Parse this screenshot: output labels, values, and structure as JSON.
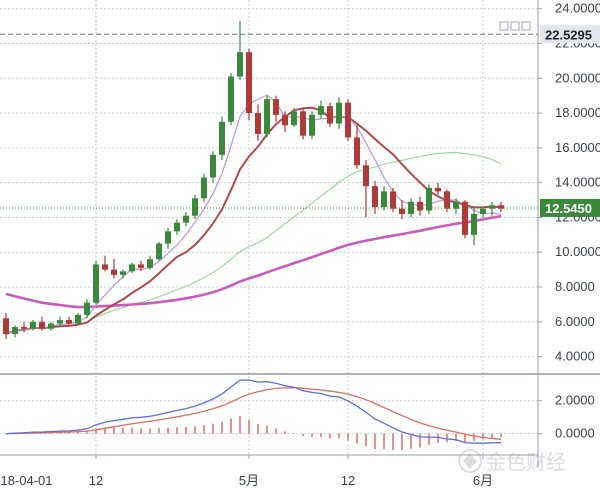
{
  "chart_data": [
    {
      "type": "candlestick",
      "panel": "price",
      "grid": true,
      "ylim": [
        3.0,
        24.5
      ],
      "y_ticks": [
        "4.0000",
        "6.0000",
        "8.0000",
        "10.0000",
        "12.0000",
        "14.0000",
        "16.0000",
        "18.0000",
        "20.0000",
        "22.0000",
        "24.0000"
      ],
      "y_tick_values": [
        4,
        6,
        8,
        10,
        12,
        14,
        16,
        18,
        20,
        22,
        24
      ],
      "x_ticks": [
        "2018-04-01",
        "12",
        "5月",
        "12",
        "6月"
      ],
      "x_tick_index": [
        0,
        10,
        27,
        38,
        53
      ],
      "price_labels": [
        {
          "text": "22.5295",
          "value": 22.5295,
          "style": "dark",
          "line": "dashed"
        },
        {
          "text": "12.5450",
          "value": 12.545,
          "style": "green",
          "line": "dotted"
        }
      ],
      "colors": {
        "up": "#3b8a3b",
        "down": "#b03a3a",
        "ma_fast": "#b49ad6",
        "ma_mid": "#b04a4a",
        "ma_slow": "#9ed99e",
        "ma_long": "#c85bbd"
      },
      "ohlc": [
        [
          6.2,
          6.5,
          5.0,
          5.3
        ],
        [
          5.3,
          5.8,
          5.1,
          5.7
        ],
        [
          5.7,
          6.0,
          5.4,
          5.6
        ],
        [
          5.6,
          6.1,
          5.5,
          6.0
        ],
        [
          6.0,
          6.3,
          5.5,
          5.6
        ],
        [
          5.6,
          6.0,
          5.5,
          5.9
        ],
        [
          5.9,
          6.3,
          5.7,
          6.1
        ],
        [
          6.1,
          6.3,
          5.8,
          5.9
        ],
        [
          5.9,
          6.5,
          5.8,
          6.4
        ],
        [
          6.4,
          7.3,
          6.2,
          7.1
        ],
        [
          7.1,
          9.5,
          7.0,
          9.3
        ],
        [
          9.3,
          9.8,
          8.9,
          9.0
        ],
        [
          9.0,
          9.6,
          8.5,
          8.7
        ],
        [
          8.7,
          9.0,
          8.5,
          8.9
        ],
        [
          8.9,
          9.4,
          8.8,
          9.3
        ],
        [
          9.3,
          9.5,
          8.9,
          9.1
        ],
        [
          9.1,
          9.8,
          9.0,
          9.6
        ],
        [
          9.6,
          10.6,
          9.5,
          10.5
        ],
        [
          10.5,
          11.4,
          10.2,
          11.2
        ],
        [
          11.2,
          11.9,
          11.0,
          11.7
        ],
        [
          11.7,
          12.3,
          11.5,
          12.1
        ],
        [
          12.1,
          13.3,
          11.9,
          13.1
        ],
        [
          13.1,
          14.5,
          12.9,
          14.3
        ],
        [
          14.3,
          15.8,
          14.0,
          15.6
        ],
        [
          15.6,
          17.8,
          15.3,
          17.5
        ],
        [
          17.5,
          20.3,
          17.3,
          20.1
        ],
        [
          20.1,
          23.3,
          19.9,
          21.5
        ],
        [
          21.5,
          21.7,
          17.6,
          18.0
        ],
        [
          18.0,
          18.5,
          16.4,
          16.8
        ],
        [
          16.8,
          19.0,
          16.6,
          18.8
        ],
        [
          18.8,
          19.0,
          17.5,
          17.9
        ],
        [
          17.9,
          18.1,
          16.9,
          17.3
        ],
        [
          17.3,
          18.3,
          17.2,
          18.1
        ],
        [
          18.1,
          18.3,
          16.5,
          16.7
        ],
        [
          16.7,
          18.1,
          16.5,
          17.9
        ],
        [
          17.9,
          18.7,
          17.7,
          18.4
        ],
        [
          18.4,
          18.6,
          17.2,
          17.4
        ],
        [
          17.4,
          18.9,
          17.1,
          18.6
        ],
        [
          18.6,
          18.8,
          16.4,
          16.6
        ],
        [
          16.6,
          17.3,
          14.8,
          15.0
        ],
        [
          15.0,
          15.3,
          12.0,
          13.8
        ],
        [
          13.8,
          14.1,
          12.2,
          12.6
        ],
        [
          12.6,
          13.8,
          12.4,
          13.5
        ],
        [
          13.5,
          13.7,
          12.3,
          12.5
        ],
        [
          12.5,
          13.0,
          11.9,
          12.2
        ],
        [
          12.2,
          13.1,
          12.0,
          12.9
        ],
        [
          12.9,
          13.2,
          12.1,
          12.4
        ],
        [
          12.4,
          13.9,
          12.2,
          13.7
        ],
        [
          13.7,
          14.0,
          13.3,
          13.5
        ],
        [
          13.5,
          13.6,
          12.3,
          12.5
        ],
        [
          12.5,
          13.1,
          12.2,
          12.9
        ],
        [
          12.9,
          13.0,
          10.8,
          11.0
        ],
        [
          11.0,
          12.6,
          10.4,
          12.2
        ],
        [
          12.2,
          12.6,
          12.0,
          12.5
        ],
        [
          12.5,
          12.9,
          12.1,
          12.7
        ],
        [
          12.7,
          12.9,
          12.3,
          12.5
        ]
      ]
    },
    {
      "type": "macd",
      "panel": "indicator",
      "grid": true,
      "ylim": [
        -1.3,
        3.5
      ],
      "y_ticks": [
        "0.0000",
        "2.0000"
      ],
      "y_tick_values": [
        0,
        2
      ],
      "colors": {
        "dif": "#5a6fe0",
        "dea": "#e07060",
        "hist_pos": "#d84545",
        "hist_neg": "#d84545"
      }
    }
  ],
  "watermark": {
    "text": "金色财经"
  }
}
